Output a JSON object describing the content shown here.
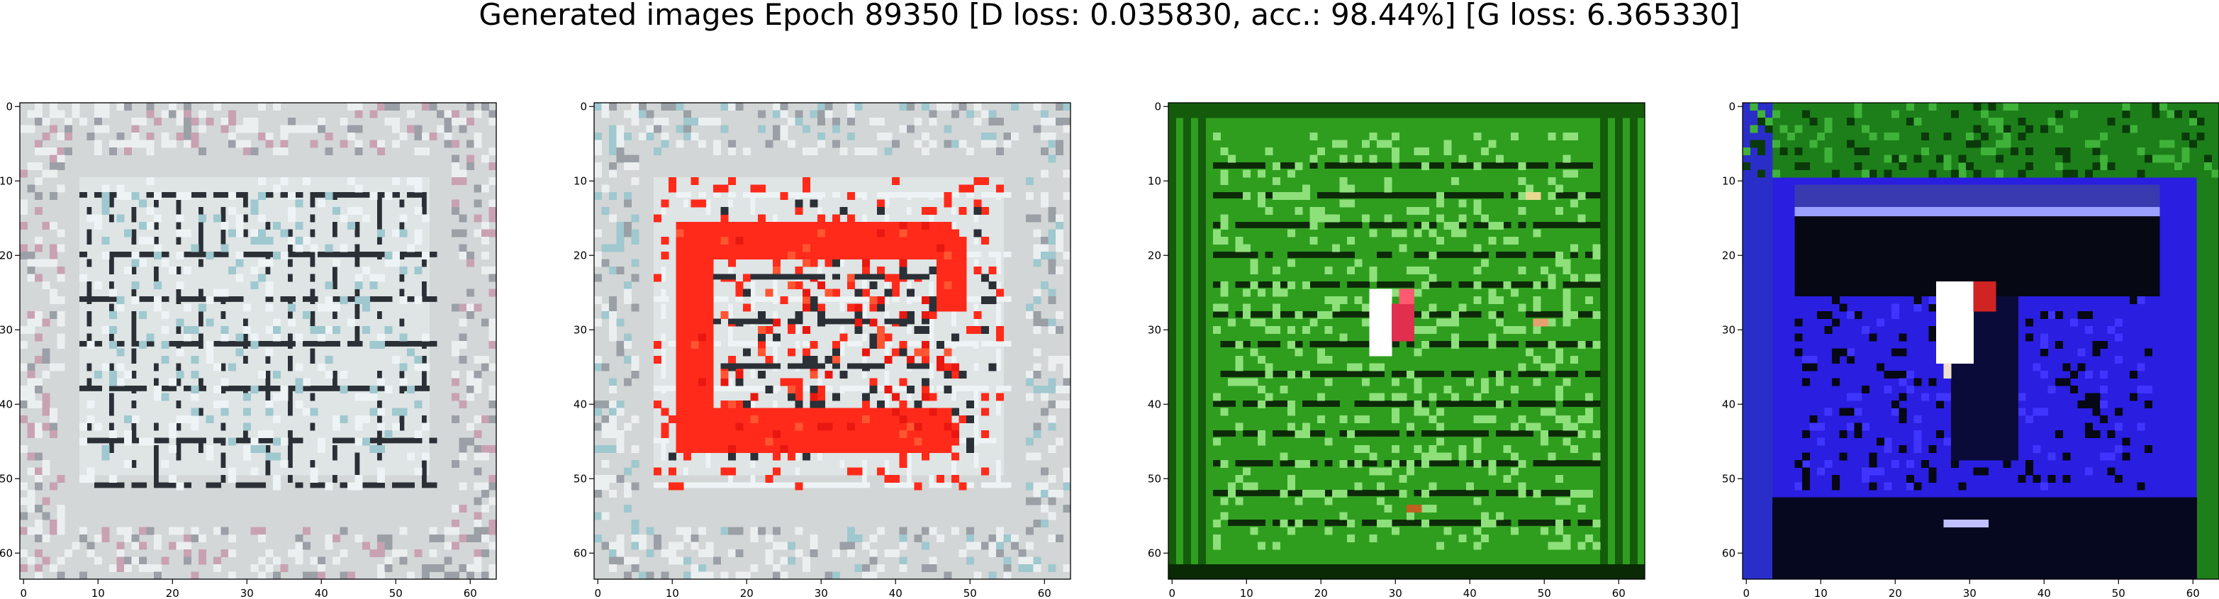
{
  "figure": {
    "title": "Generated images Epoch 89350 [D loss: 0.035830, acc.: 98.44%] [G loss: 6.365330]"
  },
  "axes_ticks": {
    "x": [
      0,
      10,
      20,
      30,
      40,
      50,
      60
    ],
    "y": [
      0,
      10,
      20,
      30,
      40,
      50,
      60
    ]
  },
  "image_size": 64,
  "panels": [
    {
      "name": "sample-1",
      "background": "#d3d7d8",
      "pattern": "grey-grid",
      "accent_colors": [
        "#eef4f5",
        "#2b3036",
        "#9fc8cf",
        "#c9a2b2"
      ]
    },
    {
      "name": "sample-2",
      "background": "#d3d6d6",
      "pattern": "grey-grid-red-frame",
      "accent_colors": [
        "#ff2a1a",
        "#eef4f5",
        "#2b3036",
        "#9fc8cf"
      ]
    },
    {
      "name": "sample-3",
      "background": "#2f9e1f",
      "pattern": "green-stripes",
      "accent_colors": [
        "#0d2a08",
        "#8ee07a",
        "#ffffff",
        "#e03050"
      ]
    },
    {
      "name": "sample-4",
      "background": "#2a1ee0",
      "pattern": "blue-field",
      "accent_colors": [
        "#060814",
        "#1d8a1a",
        "#ffffff",
        "#d02424"
      ]
    }
  ]
}
